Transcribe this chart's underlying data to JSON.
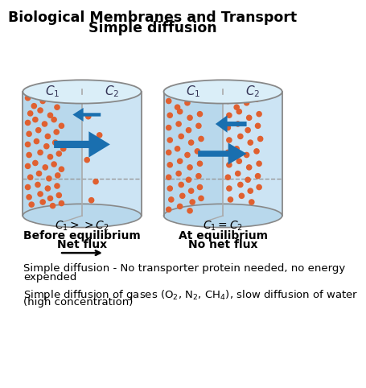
{
  "title_line1": "Biological Membranes and Transport",
  "title_line2": "Simple diffusion",
  "title_fontsize": 12.5,
  "bg_color": "#ffffff",
  "cyl_left_color": "#b8d8ec",
  "cyl_right_color": "#cce4f4",
  "cyl_edge_color": "#888888",
  "arrow_color": "#1a6faf",
  "dot_color": "#e06030",
  "text_color": "#000000",
  "before_sub": "$C_1 >> C_2$",
  "before_line1": "Before equilibrium",
  "before_line2": "Net flux",
  "after_sub": "$C_1 = C_2$",
  "after_line1": "At equilibrium",
  "after_line2": "No net flux",
  "desc1a": "Simple diffusion - No transporter protein needed, no energy",
  "desc1b": "expended",
  "desc2": "Simple diffusion of gases (O$_2$, N$_2$, CH$_4$), slow diffusion of water",
  "desc3": "(high concentration)",
  "note_fontsize": 9.5
}
